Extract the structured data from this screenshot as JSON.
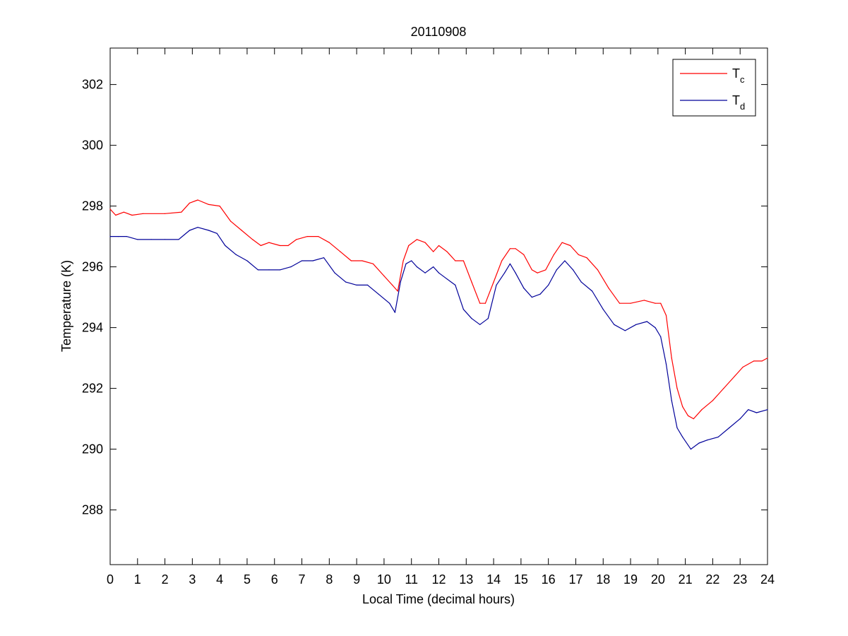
{
  "chart_data": {
    "type": "line",
    "title": "20110908",
    "xlabel": "Local Time (decimal hours)",
    "ylabel": "Temperature (K)",
    "xlim": [
      0,
      24
    ],
    "ylim": [
      286.2,
      303.2
    ],
    "xticks": [
      0,
      1,
      2,
      3,
      4,
      5,
      6,
      7,
      8,
      9,
      10,
      11,
      12,
      13,
      14,
      15,
      16,
      17,
      18,
      19,
      20,
      21,
      22,
      23,
      24
    ],
    "yticks": [
      288,
      290,
      292,
      294,
      296,
      298,
      300,
      302
    ],
    "grid": false,
    "legend_position": "top-right",
    "series": [
      {
        "name": "T",
        "subscript": "c",
        "color": "#ff0000",
        "x": [
          0,
          0.2,
          0.5,
          0.8,
          1.2,
          2.0,
          2.6,
          2.9,
          3.2,
          3.6,
          4.0,
          4.4,
          4.8,
          5.2,
          5.5,
          5.8,
          6.2,
          6.5,
          6.8,
          7.2,
          7.6,
          8.0,
          8.4,
          8.8,
          9.2,
          9.6,
          10.0,
          10.3,
          10.5,
          10.7,
          10.9,
          11.2,
          11.5,
          11.8,
          12.0,
          12.3,
          12.6,
          12.9,
          13.2,
          13.5,
          13.7,
          14.0,
          14.3,
          14.6,
          14.8,
          15.1,
          15.4,
          15.6,
          15.9,
          16.2,
          16.5,
          16.8,
          17.1,
          17.4,
          17.8,
          18.2,
          18.6,
          19.0,
          19.5,
          19.9,
          20.1,
          20.3,
          20.5,
          20.7,
          20.9,
          21.1,
          21.3,
          21.6,
          22.0,
          22.4,
          22.8,
          23.1,
          23.5,
          23.8,
          24.0
        ],
        "y": [
          297.9,
          297.7,
          297.8,
          297.7,
          297.75,
          297.75,
          297.8,
          298.1,
          298.2,
          298.05,
          298.0,
          297.5,
          297.2,
          296.9,
          296.7,
          296.8,
          296.7,
          296.7,
          296.9,
          297.0,
          297.0,
          296.8,
          296.5,
          296.2,
          296.2,
          296.1,
          295.7,
          295.4,
          295.2,
          296.2,
          296.7,
          296.9,
          296.8,
          296.5,
          296.7,
          296.5,
          296.2,
          296.2,
          295.5,
          294.8,
          294.8,
          295.5,
          296.2,
          296.6,
          296.6,
          296.4,
          295.9,
          295.8,
          295.9,
          296.4,
          296.8,
          296.7,
          296.4,
          296.3,
          295.9,
          295.3,
          294.8,
          294.8,
          294.9,
          294.8,
          294.8,
          294.4,
          293.0,
          292.0,
          291.4,
          291.1,
          291.0,
          291.3,
          291.6,
          292.0,
          292.4,
          292.7,
          292.9,
          292.9,
          293.0
        ]
      },
      {
        "name": "T",
        "subscript": "d",
        "color": "#000099",
        "x": [
          0,
          0.3,
          0.6,
          1.0,
          1.5,
          2.0,
          2.5,
          2.9,
          3.2,
          3.6,
          3.9,
          4.2,
          4.6,
          5.0,
          5.4,
          5.8,
          6.2,
          6.6,
          7.0,
          7.4,
          7.8,
          8.2,
          8.6,
          9.0,
          9.4,
          9.8,
          10.2,
          10.4,
          10.6,
          10.8,
          11.0,
          11.2,
          11.5,
          11.8,
          12.0,
          12.3,
          12.6,
          12.9,
          13.2,
          13.5,
          13.8,
          14.1,
          14.4,
          14.6,
          14.8,
          15.1,
          15.4,
          15.7,
          16.0,
          16.3,
          16.6,
          16.9,
          17.2,
          17.6,
          18.0,
          18.4,
          18.8,
          19.2,
          19.6,
          19.9,
          20.1,
          20.3,
          20.5,
          20.7,
          20.9,
          21.2,
          21.5,
          21.8,
          22.2,
          22.6,
          23.0,
          23.3,
          23.6,
          24.0
        ],
        "y": [
          297.0,
          297.0,
          297.0,
          296.9,
          296.9,
          296.9,
          296.9,
          297.2,
          297.3,
          297.2,
          297.1,
          296.7,
          296.4,
          296.2,
          295.9,
          295.9,
          295.9,
          296.0,
          296.2,
          296.2,
          296.3,
          295.8,
          295.5,
          295.4,
          295.4,
          295.1,
          294.8,
          294.5,
          295.5,
          296.1,
          296.2,
          296.0,
          295.8,
          296.0,
          295.8,
          295.6,
          295.4,
          294.6,
          294.3,
          294.1,
          294.3,
          295.4,
          295.8,
          296.1,
          295.8,
          295.3,
          295.0,
          295.1,
          295.4,
          295.9,
          296.2,
          295.9,
          295.5,
          295.2,
          294.6,
          294.1,
          293.9,
          294.1,
          294.2,
          294.0,
          293.7,
          292.8,
          291.6,
          290.7,
          290.4,
          290.0,
          290.2,
          290.3,
          290.4,
          290.7,
          291.0,
          291.3,
          291.2,
          291.3
        ]
      }
    ]
  }
}
